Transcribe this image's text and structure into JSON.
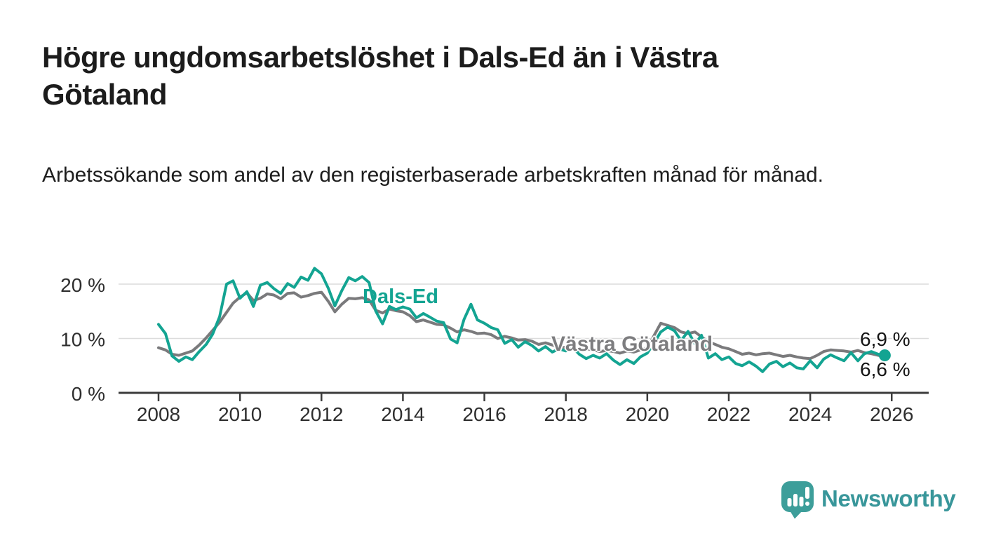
{
  "branding": {
    "name": "Newsworthy"
  },
  "chart_data": {
    "type": "line",
    "title": "Högre ungdomsarbetslöshet i Dals-Ed än i Västra Götaland",
    "subtitle": "Arbetssökande som andel av den registerbaserade arbetskraften månad för månad.",
    "unit": "%",
    "grid": "horizontal-only",
    "legend_position": "inline-labels-on-lines",
    "x_axis": {
      "ticks": [
        2008,
        2010,
        2012,
        2014,
        2016,
        2018,
        2020,
        2022,
        2024,
        2026
      ],
      "range": [
        2007.02,
        2026.9
      ]
    },
    "y_axis": {
      "ticks": [
        {
          "value": 20,
          "label": "20 %"
        },
        {
          "value": 10,
          "label": "10 %"
        },
        {
          "value": 0,
          "label": "0 %"
        }
      ],
      "range": [
        0,
        23.7
      ]
    },
    "series": [
      {
        "id": "dals-ed",
        "name": "Dals-Ed",
        "color": "#13a492",
        "end_label": "6,9 %",
        "end_value": 6.9,
        "end_dot": true,
        "x": [
          2008,
          2008.17,
          2008.33,
          2008.5,
          2008.67,
          2008.83,
          2009,
          2009.17,
          2009.33,
          2009.5,
          2009.67,
          2009.83,
          2010,
          2010.17,
          2010.33,
          2010.5,
          2010.67,
          2010.83,
          2011,
          2011.17,
          2011.33,
          2011.5,
          2011.67,
          2011.83,
          2012,
          2012.17,
          2012.33,
          2012.5,
          2012.67,
          2012.83,
          2013,
          2013.17,
          2013.33,
          2013.5,
          2013.67,
          2013.83,
          2014,
          2014.17,
          2014.33,
          2014.5,
          2014.67,
          2014.83,
          2015,
          2015.17,
          2015.33,
          2015.5,
          2015.67,
          2015.83,
          2016,
          2016.17,
          2016.33,
          2016.5,
          2016.67,
          2016.83,
          2017,
          2017.17,
          2017.33,
          2017.5,
          2017.67,
          2017.83,
          2018,
          2018.17,
          2018.33,
          2018.5,
          2018.67,
          2018.83,
          2019,
          2019.17,
          2019.33,
          2019.5,
          2019.67,
          2019.83,
          2020,
          2020.17,
          2020.33,
          2020.5,
          2020.67,
          2020.83,
          2021,
          2021.17,
          2021.33,
          2021.5,
          2021.67,
          2021.83,
          2022,
          2022.17,
          2022.33,
          2022.5,
          2022.67,
          2022.83,
          2023,
          2023.17,
          2023.33,
          2023.5,
          2023.67,
          2023.83,
          2024,
          2024.17,
          2024.33,
          2024.5,
          2024.67,
          2024.83,
          2025,
          2025.17,
          2025.33,
          2025.5,
          2025.67,
          2025.83
        ],
        "values": [
          12.6,
          10.9,
          6.8,
          5.8,
          6.6,
          6.1,
          7.6,
          8.9,
          10.8,
          14.0,
          20.0,
          20.6,
          17.4,
          18.6,
          15.9,
          19.8,
          20.3,
          19.2,
          18.3,
          20.1,
          19.4,
          21.3,
          20.7,
          22.9,
          21.9,
          19.2,
          16.0,
          18.8,
          21.2,
          20.6,
          21.4,
          20.3,
          15.1,
          12.7,
          15.9,
          15.3,
          15.8,
          15.4,
          13.8,
          14.6,
          13.9,
          13.2,
          12.9,
          9.9,
          9.2,
          13.5,
          16.3,
          13.4,
          12.8,
          12.0,
          11.6,
          9.1,
          9.8,
          8.4,
          9.4,
          8.7,
          7.7,
          8.5,
          7.5,
          8.1,
          7.7,
          8.3,
          7.1,
          6.3,
          6.9,
          6.4,
          7.2,
          6.0,
          5.2,
          6.1,
          5.4,
          6.6,
          7.3,
          9.2,
          11.2,
          12.1,
          11.4,
          9.6,
          11.3,
          9.0,
          10.6,
          6.4,
          7.2,
          6.1,
          6.6,
          5.4,
          5.0,
          5.7,
          4.9,
          3.9,
          5.3,
          5.8,
          4.8,
          5.5,
          4.6,
          4.4,
          5.9,
          4.6,
          6.2,
          7.0,
          6.4,
          5.9,
          7.4,
          5.9,
          7.2,
          7.6,
          7.1,
          6.9
        ]
      },
      {
        "id": "vastra-gotaland",
        "name": "Västra Götaland",
        "color": "#7a7a7c",
        "end_label": "6,6 %",
        "end_value": 6.6,
        "end_dot": false,
        "x": [
          2008,
          2008.17,
          2008.33,
          2008.5,
          2008.67,
          2008.83,
          2009,
          2009.17,
          2009.33,
          2009.5,
          2009.67,
          2009.83,
          2010,
          2010.17,
          2010.33,
          2010.5,
          2010.67,
          2010.83,
          2011,
          2011.17,
          2011.33,
          2011.5,
          2011.67,
          2011.83,
          2012,
          2012.17,
          2012.33,
          2012.5,
          2012.67,
          2012.83,
          2013,
          2013.17,
          2013.33,
          2013.5,
          2013.67,
          2013.83,
          2014,
          2014.17,
          2014.33,
          2014.5,
          2014.67,
          2014.83,
          2015,
          2015.17,
          2015.33,
          2015.5,
          2015.67,
          2015.83,
          2016,
          2016.17,
          2016.33,
          2016.5,
          2016.67,
          2016.83,
          2017,
          2017.17,
          2017.33,
          2017.5,
          2017.67,
          2017.83,
          2018,
          2018.17,
          2018.33,
          2018.5,
          2018.67,
          2018.83,
          2019,
          2019.17,
          2019.33,
          2019.5,
          2019.67,
          2019.83,
          2020,
          2020.17,
          2020.33,
          2020.5,
          2020.67,
          2020.83,
          2021,
          2021.17,
          2021.33,
          2021.5,
          2021.67,
          2021.83,
          2022,
          2022.17,
          2022.33,
          2022.5,
          2022.67,
          2022.83,
          2023,
          2023.17,
          2023.33,
          2023.5,
          2023.67,
          2023.83,
          2024,
          2024.17,
          2024.33,
          2024.5,
          2024.67,
          2024.83,
          2025,
          2025.17,
          2025.33,
          2025.5,
          2025.67,
          2025.83
        ],
        "values": [
          8.3,
          7.9,
          7.1,
          6.9,
          7.3,
          7.7,
          8.8,
          10.1,
          11.5,
          13.0,
          14.8,
          16.5,
          17.6,
          18.4,
          17.0,
          17.4,
          18.2,
          18.0,
          17.3,
          18.3,
          18.4,
          17.6,
          17.9,
          18.3,
          18.5,
          16.8,
          14.9,
          16.3,
          17.4,
          17.3,
          17.5,
          17.1,
          15.2,
          14.7,
          15.4,
          15.1,
          14.9,
          14.2,
          13.1,
          13.4,
          13.0,
          12.6,
          12.5,
          11.9,
          11.2,
          11.6,
          11.3,
          10.9,
          11.0,
          10.7,
          10.0,
          10.4,
          10.1,
          9.7,
          9.8,
          9.5,
          8.9,
          9.2,
          8.8,
          8.3,
          8.4,
          8.2,
          7.8,
          8.1,
          7.9,
          7.6,
          7.8,
          7.6,
          7.3,
          7.7,
          7.5,
          7.9,
          8.3,
          10.6,
          12.8,
          12.4,
          12.0,
          11.2,
          10.9,
          11.2,
          10.3,
          9.4,
          8.9,
          8.4,
          8.1,
          7.6,
          7.1,
          7.3,
          7.0,
          7.2,
          7.3,
          7.0,
          6.7,
          6.9,
          6.6,
          6.4,
          6.3,
          6.9,
          7.6,
          7.9,
          7.8,
          7.7,
          7.5,
          7.8,
          7.4,
          7.2,
          6.9,
          6.6
        ]
      }
    ]
  }
}
